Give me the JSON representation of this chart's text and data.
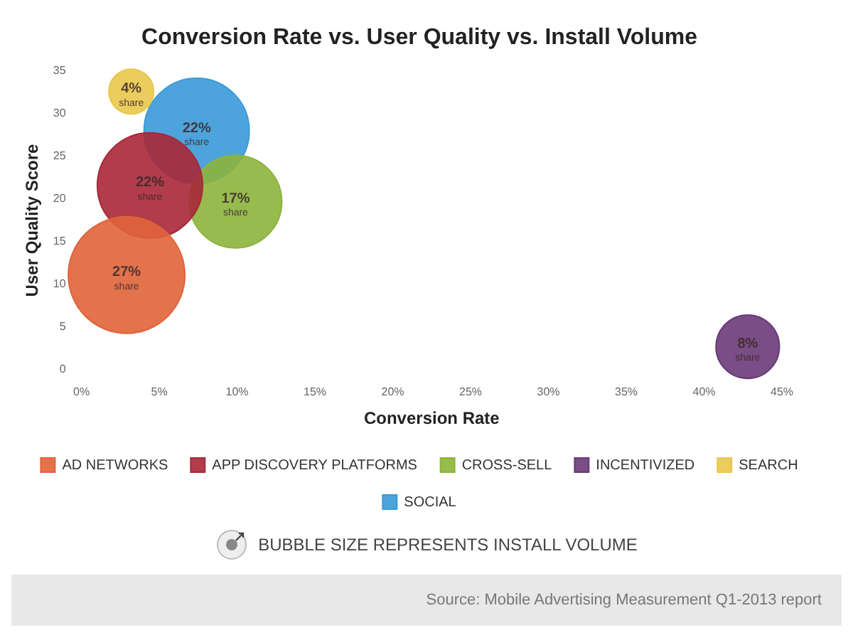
{
  "chart_data": {
    "type": "bubble",
    "title": "Conversion Rate vs. User Quality vs. Install Volume",
    "xlabel": "Conversion Rate",
    "ylabel": "User Quality Score",
    "xlim": [
      0,
      45
    ],
    "xticks": [
      {
        "value": 0,
        "label": "0%"
      },
      {
        "value": 5,
        "label": "5%"
      },
      {
        "value": 10,
        "label": "10%"
      },
      {
        "value": 15,
        "label": "15%"
      },
      {
        "value": 20,
        "label": "20%"
      },
      {
        "value": 25,
        "label": "25%"
      },
      {
        "value": 30,
        "label": "30%"
      },
      {
        "value": 35,
        "label": "35%"
      },
      {
        "value": 40,
        "label": "40%"
      },
      {
        "value": 45,
        "label": "45%"
      }
    ],
    "ylim": [
      0,
      35
    ],
    "yticks": [
      0,
      5,
      10,
      15,
      20,
      25,
      30,
      35
    ],
    "grid": false,
    "legend": "bottom",
    "series": [
      {
        "name": "AD NETWORKS",
        "color": "#e0643a",
        "x": [
          2.9
        ],
        "values": [
          11.1
        ],
        "sizes": [
          27
        ],
        "value_labels": [
          "27% share"
        ]
      },
      {
        "name": "APP DISCOVERY PLATFORMS",
        "color": "#a82838",
        "x": [
          4.4
        ],
        "values": [
          21.6
        ],
        "sizes": [
          22
        ],
        "value_labels": [
          "22% share"
        ]
      },
      {
        "name": "CROSS-SELL",
        "color": "#8cb43c",
        "x": [
          9.9
        ],
        "values": [
          19.7
        ],
        "sizes": [
          17
        ],
        "value_labels": [
          "17% share"
        ]
      },
      {
        "name": "INCENTIVIZED",
        "color": "#6a3a78",
        "x": [
          42.8
        ],
        "values": [
          2.7
        ],
        "sizes": [
          8
        ],
        "value_labels": [
          "8% share"
        ]
      },
      {
        "name": "SEARCH",
        "color": "#e8c84a",
        "x": [
          3.2
        ],
        "values": [
          32.6
        ],
        "sizes": [
          4
        ],
        "value_labels": [
          "4% share"
        ]
      },
      {
        "name": "SOCIAL",
        "color": "#3a9ad8",
        "x": [
          7.4
        ],
        "values": [
          28
        ],
        "sizes": [
          22
        ],
        "value_labels": [
          "22% share"
        ]
      }
    ],
    "annotations": [
      "BUBBLE SIZE REPRESENTS INSTALL VOLUME",
      "Source: Mobile Advertising Measurement Q1-2013 report"
    ]
  }
}
